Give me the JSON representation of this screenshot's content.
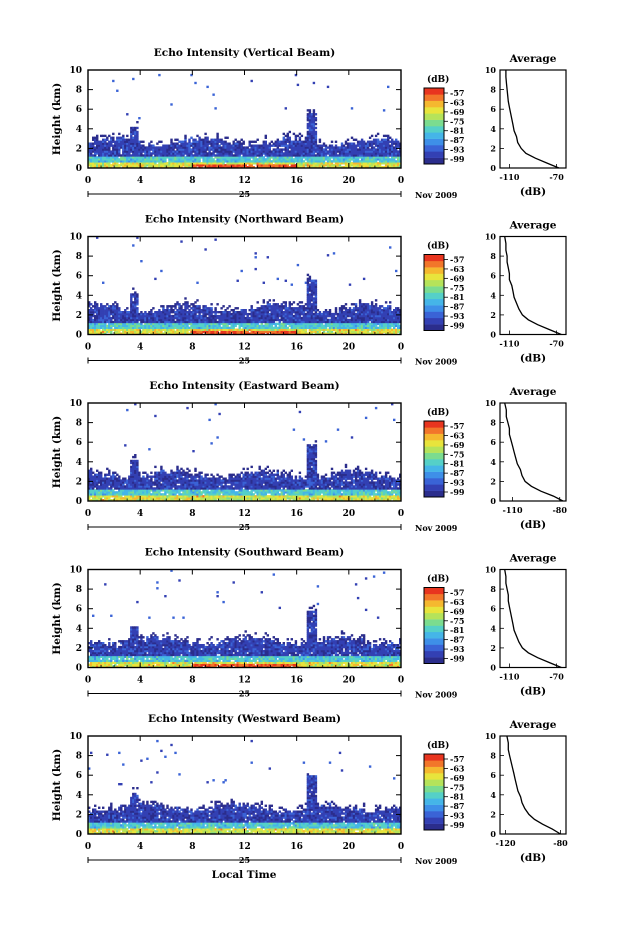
{
  "figure": {
    "footer_xlabel": "Local Time",
    "date_label": "Nov 2009",
    "day_label": "25",
    "colorbar_unit": "(dB)",
    "colorbar_ticks": [
      "-57",
      "-63",
      "-69",
      "-75",
      "-81",
      "-87",
      "-93",
      "-99"
    ],
    "colors": [
      "#2b2d8c",
      "#3340b3",
      "#3a63d6",
      "#3e8fe8",
      "#45b5e8",
      "#55d0c8",
      "#7bdc8f",
      "#b5e35a",
      "#e8e43c",
      "#f5b82f",
      "#f2762a",
      "#e8351f"
    ]
  },
  "chart_data": [
    {
      "type": "heatmap",
      "title": "Echo Intensity (Vertical Beam)",
      "ylabel": "Height (km)",
      "xlim": [
        0,
        24
      ],
      "ylim": [
        0,
        10
      ],
      "x_ticks": [
        "0",
        "4",
        "8",
        "12",
        "16",
        "20",
        "0"
      ],
      "y_ticks": [
        "0",
        "2",
        "4",
        "6",
        "8",
        "10"
      ],
      "colorbar": {
        "label": "(dB)",
        "range": [
          -99,
          -57
        ],
        "ticks": [
          "-57",
          "-63",
          "-69",
          "-75",
          "-81",
          "-87",
          "-93",
          "-99"
        ]
      },
      "profile": {
        "title": "Average",
        "xlabel": "(dB)",
        "x_ticks": [
          "-110",
          "-70"
        ],
        "xlim": [
          -118,
          -62
        ],
        "y_ticks": [
          "0",
          "2",
          "4",
          "6",
          "8",
          "10"
        ],
        "points": [
          [
            -68,
            0.0
          ],
          [
            -78,
            0.5
          ],
          [
            -88,
            1.0
          ],
          [
            -96,
            1.5
          ],
          [
            -100,
            2.0
          ],
          [
            -103,
            2.6
          ],
          [
            -104,
            3.2
          ],
          [
            -106,
            3.8
          ],
          [
            -107,
            4.4
          ],
          [
            -108,
            5.0
          ],
          [
            -109,
            5.6
          ],
          [
            -110,
            6.2
          ],
          [
            -111,
            6.8
          ],
          [
            -111.5,
            7.4
          ],
          [
            -112,
            8.0
          ],
          [
            -112.5,
            8.6
          ],
          [
            -113,
            9.3
          ],
          [
            -113,
            10.0
          ]
        ]
      }
    },
    {
      "type": "heatmap",
      "title": "Echo Intensity (Northward Beam)",
      "ylabel": "Height (km)",
      "xlim": [
        0,
        24
      ],
      "ylim": [
        0,
        10
      ],
      "x_ticks": [
        "0",
        "4",
        "8",
        "12",
        "16",
        "20",
        "0"
      ],
      "y_ticks": [
        "0",
        "2",
        "4",
        "6",
        "8",
        "10"
      ],
      "colorbar": {
        "label": "(dB)",
        "range": [
          -99,
          -57
        ],
        "ticks": [
          "-57",
          "-63",
          "-69",
          "-75",
          "-81",
          "-87",
          "-93",
          "-99"
        ]
      },
      "profile": {
        "title": "Average",
        "xlabel": "(dB)",
        "x_ticks": [
          "-110",
          "-70"
        ],
        "xlim": [
          -118,
          -62
        ],
        "y_ticks": [
          "0",
          "2",
          "4",
          "6",
          "8",
          "10"
        ],
        "points": [
          [
            -66,
            0.0
          ],
          [
            -76,
            0.5
          ],
          [
            -86,
            1.0
          ],
          [
            -94,
            1.5
          ],
          [
            -99,
            2.0
          ],
          [
            -102,
            2.6
          ],
          [
            -104,
            3.2
          ],
          [
            -106,
            3.8
          ],
          [
            -107,
            4.4
          ],
          [
            -108,
            5.0
          ],
          [
            -110,
            5.6
          ],
          [
            -110,
            6.2
          ],
          [
            -111,
            6.8
          ],
          [
            -112,
            7.4
          ],
          [
            -112,
            8.0
          ],
          [
            -113,
            8.6
          ],
          [
            -113,
            9.3
          ],
          [
            -114,
            10.0
          ]
        ]
      }
    },
    {
      "type": "heatmap",
      "title": "Echo Intensity (Eastward Beam)",
      "ylabel": "Height (km)",
      "xlim": [
        0,
        24
      ],
      "ylim": [
        0,
        10
      ],
      "x_ticks": [
        "0",
        "4",
        "8",
        "12",
        "16",
        "20",
        "0"
      ],
      "y_ticks": [
        "0",
        "2",
        "4",
        "6",
        "8",
        "10"
      ],
      "colorbar": {
        "label": "(dB)",
        "range": [
          -99,
          -57
        ],
        "ticks": [
          "-57",
          "-63",
          "-69",
          "-75",
          "-81",
          "-87",
          "-93",
          "-99"
        ]
      },
      "profile": {
        "title": "Average",
        "xlabel": "(dB)",
        "x_ticks": [
          "-110",
          "-80"
        ],
        "xlim": [
          -118,
          -76
        ],
        "y_ticks": [
          "0",
          "2",
          "4",
          "6",
          "8",
          "10"
        ],
        "points": [
          [
            -78,
            0.0
          ],
          [
            -84,
            0.5
          ],
          [
            -92,
            1.0
          ],
          [
            -98,
            1.5
          ],
          [
            -102,
            2.0
          ],
          [
            -104,
            2.6
          ],
          [
            -105,
            3.2
          ],
          [
            -107,
            3.8
          ],
          [
            -108,
            4.4
          ],
          [
            -109,
            5.0
          ],
          [
            -110,
            5.6
          ],
          [
            -111,
            6.2
          ],
          [
            -112,
            6.8
          ],
          [
            -112,
            7.4
          ],
          [
            -113,
            8.0
          ],
          [
            -114,
            8.6
          ],
          [
            -114,
            9.3
          ],
          [
            -115,
            10.0
          ]
        ]
      }
    },
    {
      "type": "heatmap",
      "title": "Echo Intensity (Southward Beam)",
      "ylabel": "Height (km)",
      "xlim": [
        0,
        24
      ],
      "ylim": [
        0,
        10
      ],
      "x_ticks": [
        "0",
        "4",
        "8",
        "12",
        "16",
        "20",
        "0"
      ],
      "y_ticks": [
        "0",
        "2",
        "4",
        "6",
        "8",
        "10"
      ],
      "colorbar": {
        "label": "(dB)",
        "range": [
          -99,
          -57
        ],
        "ticks": [
          "-57",
          "-63",
          "-69",
          "-75",
          "-81",
          "-87",
          "-93",
          "-99"
        ]
      },
      "profile": {
        "title": "Average",
        "xlabel": "(dB)",
        "x_ticks": [
          "-110",
          "-70"
        ],
        "xlim": [
          -118,
          -62
        ],
        "y_ticks": [
          "0",
          "2",
          "4",
          "6",
          "8",
          "10"
        ],
        "points": [
          [
            -66,
            0.0
          ],
          [
            -76,
            0.5
          ],
          [
            -86,
            1.0
          ],
          [
            -94,
            1.5
          ],
          [
            -99,
            2.0
          ],
          [
            -102,
            2.6
          ],
          [
            -104,
            3.2
          ],
          [
            -106,
            3.8
          ],
          [
            -107,
            4.4
          ],
          [
            -108,
            5.0
          ],
          [
            -109,
            5.6
          ],
          [
            -110,
            6.2
          ],
          [
            -111,
            6.8
          ],
          [
            -111,
            7.4
          ],
          [
            -112,
            8.0
          ],
          [
            -113,
            8.6
          ],
          [
            -113,
            9.3
          ],
          [
            -114,
            10.0
          ]
        ]
      }
    },
    {
      "type": "heatmap",
      "title": "Echo Intensity (Westward Beam)",
      "ylabel": "Height (km)",
      "xlim": [
        0,
        24
      ],
      "ylim": [
        0,
        10
      ],
      "x_ticks": [
        "0",
        "4",
        "8",
        "12",
        "16",
        "20",
        "0"
      ],
      "y_ticks": [
        "0",
        "2",
        "4",
        "6",
        "8",
        "10"
      ],
      "colorbar": {
        "label": "(dB)",
        "range": [
          -99,
          -57
        ],
        "ticks": [
          "-57",
          "-63",
          "-69",
          "-75",
          "-81",
          "-87",
          "-93",
          "-99"
        ]
      },
      "profile": {
        "title": "Average",
        "xlabel": "(dB)",
        "x_ticks": [
          "-120",
          "-80"
        ],
        "xlim": [
          -124,
          -76
        ],
        "y_ticks": [
          "0",
          "2",
          "4",
          "6",
          "8",
          "10"
        ],
        "points": [
          [
            -80,
            0.0
          ],
          [
            -86,
            0.5
          ],
          [
            -93,
            1.0
          ],
          [
            -99,
            1.5
          ],
          [
            -103,
            2.0
          ],
          [
            -106,
            2.6
          ],
          [
            -108,
            3.2
          ],
          [
            -109,
            3.8
          ],
          [
            -111,
            4.4
          ],
          [
            -112,
            5.0
          ],
          [
            -113,
            5.6
          ],
          [
            -114,
            6.2
          ],
          [
            -115,
            6.8
          ],
          [
            -116,
            7.4
          ],
          [
            -117,
            8.0
          ],
          [
            -118,
            8.6
          ],
          [
            -118,
            9.3
          ],
          [
            -119,
            10.0
          ]
        ]
      }
    }
  ]
}
